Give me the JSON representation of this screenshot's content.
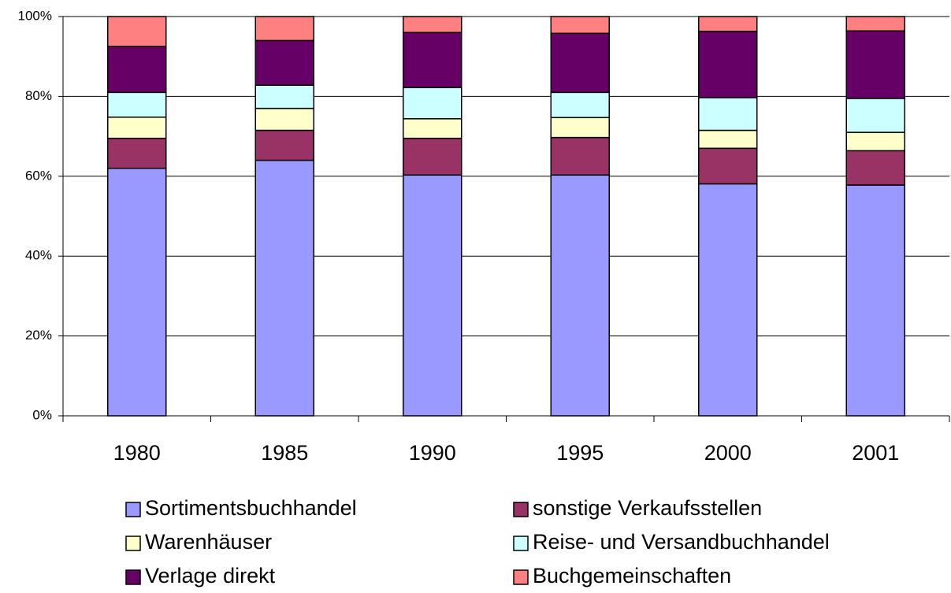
{
  "chart_data": {
    "type": "stacked_bar",
    "categories": [
      "1980",
      "1985",
      "1990",
      "1995",
      "2000",
      "2001"
    ],
    "series": [
      {
        "name": "Sortimentsbuchhandel",
        "color": "#9999ff",
        "values": [
          62,
          64,
          60.3,
          60.3,
          58.1,
          57.8
        ]
      },
      {
        "name": "sonstige Verkaufsstellen",
        "color": "#993366",
        "values": [
          7.5,
          7.5,
          9.2,
          9.4,
          8.9,
          8.6
        ]
      },
      {
        "name": "Warenhäuser",
        "color": "#ffffcc",
        "values": [
          5.3,
          5.5,
          4.9,
          5,
          4.5,
          4.6
        ]
      },
      {
        "name": "Reise- und Versandbuchhandel",
        "color": "#ccffff",
        "values": [
          6.2,
          5.8,
          7.8,
          6.3,
          8.2,
          8.5
        ]
      },
      {
        "name": "Verlage direkt",
        "color": "#660066",
        "values": [
          11.5,
          11.2,
          13.8,
          14.8,
          16.6,
          16.9
        ]
      },
      {
        "name": "Buchgemeinschaften",
        "color": "#ff8080",
        "values": [
          7.5,
          6,
          4,
          4.2,
          3.7,
          3.6
        ]
      }
    ],
    "ylim": [
      0,
      100
    ],
    "yticks": [
      {
        "value": 0,
        "label": "0%"
      },
      {
        "value": 20,
        "label": "20%"
      },
      {
        "value": 40,
        "label": "40%"
      },
      {
        "value": 60,
        "label": "60%"
      },
      {
        "value": 80,
        "label": "80%"
      },
      {
        "value": 100,
        "label": "100%"
      }
    ],
    "grid": true
  }
}
